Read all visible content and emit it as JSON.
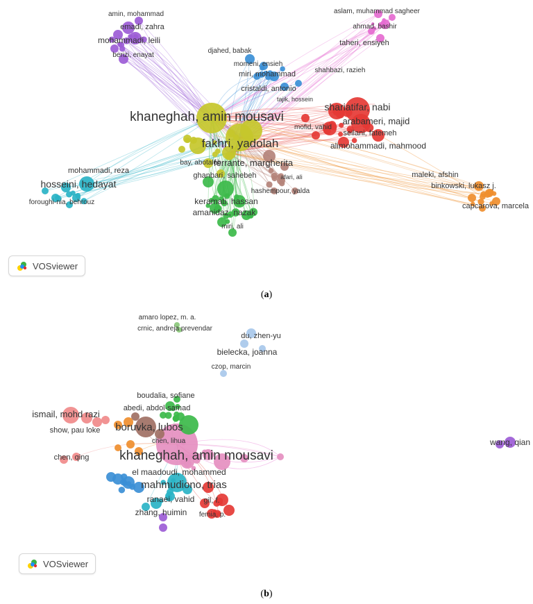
{
  "panel_a": {
    "caption_open": "(",
    "caption_letter": "a",
    "caption_close": ")",
    "watermark": "VOSviewer",
    "labels": {
      "amin_mohammad": "amin, mohammad",
      "emadi_zahra": "emadi, zahra",
      "mohammadi_leili": "mohammadi, leili",
      "berizi_enayat": "berizi, enayat",
      "djahed_babak": "djahed, babak",
      "momeni_ensieh": "momeni, ensieh",
      "miri_mohammad": "miri, mohammad",
      "cristaldi_antonio": "cristaldi, antonio",
      "tajik_hossein": "tajik, hossein",
      "aslam": "aslam, muhammad sagheer",
      "ahmad_bashir": "ahmad, bashir",
      "taheri_ensiyeh": "taheri, ensiyeh",
      "shahbazi_razieh": "shahbazi, razieh",
      "shariatifar_nabi": "shariatifar, nabi",
      "arabameri_majid": "arabameri, majid",
      "mofid_vahid": "mofid, vahid",
      "seilani_fatemeh": "seilani, fatemeh",
      "alimohammadi_mahmood": "alimohammadi, mahmood",
      "khaneghah": "khaneghah, amin mousavi",
      "fakhri_yadolah": "fakhri, yadolah",
      "bay_abotaleb": "bay, abotaleb",
      "ferrante_margherita": "ferrante, margherita",
      "ghanbari_sahebeh": "ghanbari, sahebeh",
      "afari_ali": "afari, ali",
      "hashempour_yalda": "hashempour, yalda",
      "keramati_hassan": "keramati, hassan",
      "amanidaz_nazak": "amanidaz, nazak",
      "miri_ali": "miri, ali",
      "mohammadi_reza": "mohammadi, reza",
      "hosseini_hedayat": "hosseini, hedayat",
      "foroughi_nia": "foroughi-nia, behrouz",
      "maleki_afshin": "maleki, afshin",
      "binkowski": "binkowski, lukasz j.",
      "capcarova": "capcarova, marcela"
    }
  },
  "panel_b": {
    "caption_open": "(",
    "caption_letter": "b",
    "caption_close": ")",
    "watermark": "VOSviewer",
    "labels": {
      "amaro_lopez": "amaro lopez, m. a.",
      "crnic": "crnic, andreja prevendar",
      "du_zhenyu": "du, zhen-yu",
      "bielecka_joanna": "bielecka, joanna",
      "czop_marcin": "czop, marcin",
      "boudalia_sofiane": "boudalia, sofiane",
      "abedi_abdol": "abedi, abdol-samad",
      "ismail": "ismail, mohd razi",
      "borivka_lubos": "boruvka, lubos",
      "show_pau_loke": "show, pau loke",
      "chen_lihua": "chen, lihua",
      "chen_qing": "chen, qing",
      "khaneghah": "khaneghah, amin mousavi",
      "el_maadoudi": "el maadoudi, mohammed",
      "mahmudiono": "mahmudiono, trias",
      "ranaei_vahid": "ranaei, vahid",
      "gil_f": "gil, f.",
      "zhang_huimin": "zhang, huimin",
      "femia_p": "femia, p.",
      "wang_qian": "wang, qian"
    }
  }
}
